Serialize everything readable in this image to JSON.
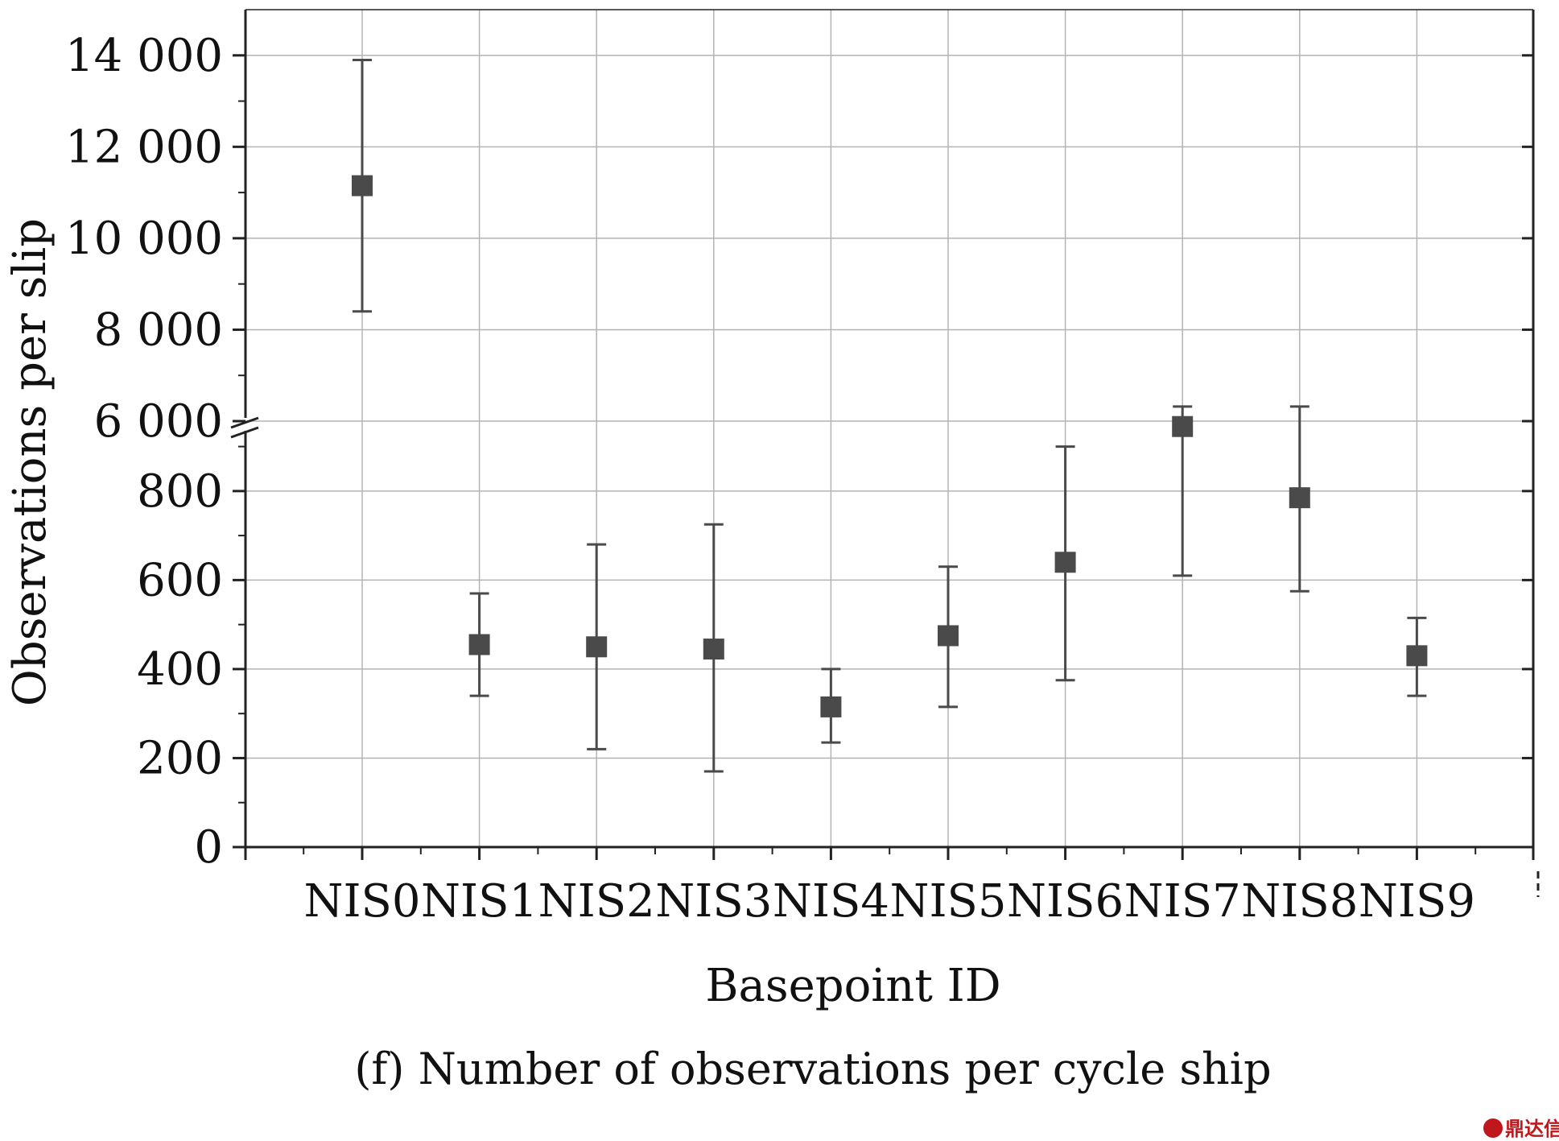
{
  "caption": "(f) Number of observations per cycle ship",
  "watermark": "鼎达信",
  "colors": {
    "marker": "#4a4a4a",
    "grid": "#b3b3b3",
    "axis": "#222222",
    "watermark": "#c0171d"
  },
  "chart_data": {
    "type": "scatter",
    "xlabel": "Basepoint ID",
    "ylabel": "Observations per slip",
    "categories": [
      "NIS0",
      "NIS1",
      "NIS2",
      "NIS3",
      "NIS4",
      "NIS5",
      "NIS6",
      "NIS7",
      "NIS8",
      "NIS9"
    ],
    "broken_y_axis": true,
    "upper_segment": {
      "ylim": [
        6000,
        15000
      ],
      "ticks": [
        "6 000",
        "8 000",
        "10 000",
        "12 000",
        "14 000"
      ],
      "tick_values": [
        6000,
        8000,
        10000,
        12000,
        14000
      ]
    },
    "lower_segment": {
      "ylim": [
        0,
        930
      ],
      "ticks": [
        "0",
        "200",
        "400",
        "600",
        "800"
      ],
      "tick_values": [
        0,
        200,
        400,
        600,
        800
      ]
    },
    "grid": true,
    "series": [
      {
        "values": [
          11150,
          455,
          450,
          445,
          315,
          475,
          640,
          945,
          785,
          430
        ],
        "error_low": [
          8400,
          340,
          220,
          170,
          235,
          315,
          375,
          610,
          575,
          340
        ],
        "error_high": [
          13900,
          570,
          680,
          725,
          400,
          630,
          900,
          990,
          990,
          515
        ]
      }
    ]
  }
}
